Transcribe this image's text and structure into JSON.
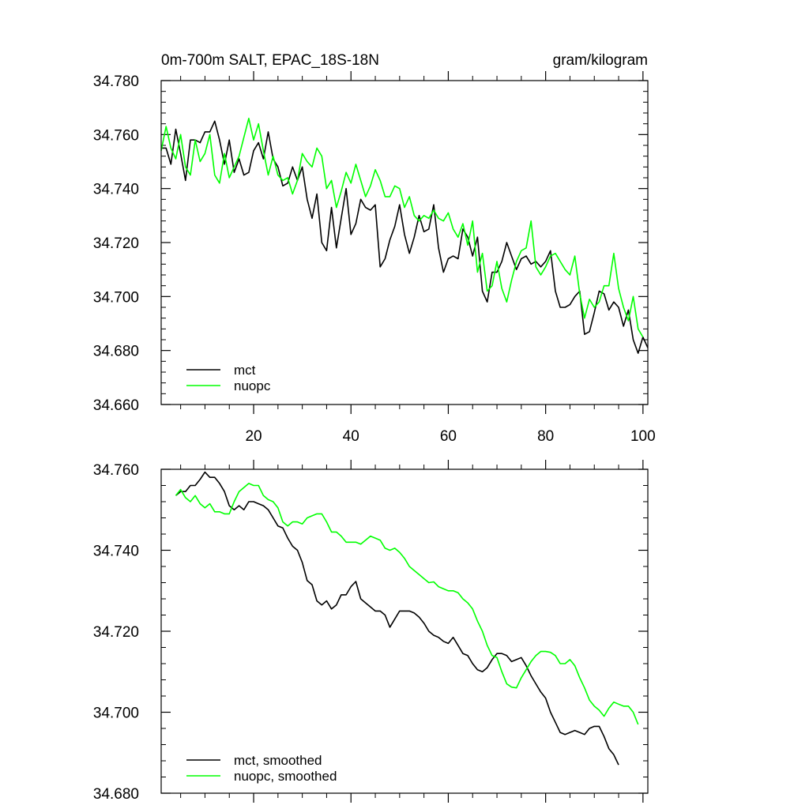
{
  "chart_data": [
    {
      "type": "line",
      "title_left": "0m-700m SALT, EPAC_18S-18N",
      "title_right": "gram/kilogram",
      "xlabel": "",
      "ylabel": "",
      "xlim": [
        1,
        101
      ],
      "ylim": [
        34.66,
        34.78
      ],
      "x_ticks": [
        20,
        40,
        60,
        80,
        100
      ],
      "x_tick_labels": [
        "20",
        "40",
        "60",
        "80",
        "100"
      ],
      "y_ticks": [
        34.66,
        34.68,
        34.7,
        34.72,
        34.74,
        34.76,
        34.78
      ],
      "y_tick_labels": [
        "34.660",
        "34.680",
        "34.700",
        "34.720",
        "34.740",
        "34.760",
        "34.780"
      ],
      "legend_position": "bottom-left",
      "series": [
        {
          "name": "mct",
          "color": "#000000",
          "x_start": 1,
          "values": [
            34.755,
            34.755,
            34.749,
            34.762,
            34.753,
            34.743,
            34.758,
            34.758,
            34.757,
            34.761,
            34.761,
            34.765,
            34.758,
            34.749,
            34.758,
            34.746,
            34.751,
            34.745,
            34.746,
            34.754,
            34.757,
            34.751,
            34.761,
            34.751,
            34.748,
            34.741,
            34.742,
            34.748,
            34.743,
            34.748,
            34.736,
            34.729,
            34.738,
            34.72,
            34.717,
            34.733,
            34.718,
            34.729,
            34.74,
            34.723,
            34.727,
            34.736,
            34.733,
            34.732,
            34.734,
            34.711,
            34.714,
            34.721,
            34.726,
            34.734,
            34.723,
            34.716,
            34.722,
            34.73,
            34.724,
            34.725,
            34.734,
            34.718,
            34.709,
            34.714,
            34.715,
            34.714,
            34.725,
            34.722,
            34.715,
            34.722,
            34.702,
            34.698,
            34.709,
            34.709,
            34.713,
            34.72,
            34.715,
            34.71,
            34.714,
            34.715,
            34.712,
            34.713,
            34.711,
            34.713,
            34.717,
            34.702,
            34.696,
            34.696,
            34.697,
            34.7,
            34.702,
            34.686,
            34.687,
            34.694,
            34.702,
            34.701,
            34.695,
            34.698,
            34.696,
            34.689,
            34.695,
            34.684,
            34.679,
            34.685,
            34.681
          ]
        },
        {
          "name": "nuopc",
          "color": "#00ff00",
          "x_start": 1,
          "values": [
            34.754,
            34.763,
            34.755,
            34.751,
            34.76,
            34.748,
            34.745,
            34.758,
            34.75,
            34.753,
            34.76,
            34.745,
            34.742,
            34.753,
            34.744,
            34.748,
            34.752,
            34.759,
            34.766,
            34.758,
            34.764,
            34.754,
            34.745,
            34.752,
            34.745,
            34.743,
            34.744,
            34.738,
            34.743,
            34.753,
            34.75,
            34.748,
            34.755,
            34.752,
            34.74,
            34.743,
            34.733,
            34.739,
            34.746,
            34.742,
            34.749,
            34.743,
            34.737,
            34.741,
            34.747,
            34.743,
            34.737,
            34.737,
            34.741,
            34.74,
            34.733,
            34.737,
            34.73,
            34.728,
            34.73,
            34.729,
            34.732,
            34.729,
            34.728,
            34.731,
            34.725,
            34.722,
            34.727,
            34.719,
            34.728,
            34.709,
            34.716,
            34.702,
            34.704,
            34.713,
            34.703,
            34.698,
            34.706,
            34.713,
            34.717,
            34.718,
            34.728,
            34.711,
            34.708,
            34.711,
            34.715,
            34.716,
            34.713,
            34.71,
            34.708,
            34.715,
            34.701,
            34.692,
            34.699,
            34.696,
            34.698,
            34.704,
            34.704,
            34.716,
            34.703,
            34.696,
            34.691,
            34.7,
            34.688,
            34.685
          ]
        }
      ]
    },
    {
      "type": "line",
      "xlabel": "",
      "ylabel": "",
      "xlim": [
        1,
        101
      ],
      "ylim": [
        34.68,
        34.76
      ],
      "x_ticks": [
        20,
        40,
        60,
        80,
        100
      ],
      "y_ticks": [
        34.68,
        34.7,
        34.72,
        34.74,
        34.76
      ],
      "y_tick_labels": [
        "34.680",
        "34.700",
        "34.720",
        "34.740",
        "34.760"
      ],
      "legend_position": "bottom-left",
      "series": [
        {
          "name": "mct, smoothed",
          "color": "#000000",
          "x_start": 4,
          "values": [
            34.7535,
            34.7545,
            34.7545,
            34.756,
            34.756,
            34.7575,
            34.7593,
            34.758,
            34.758,
            34.7565,
            34.7545,
            34.751,
            34.75,
            34.751,
            34.75,
            34.752,
            34.752,
            34.7515,
            34.751,
            34.75,
            34.748,
            34.746,
            34.7455,
            34.743,
            34.741,
            34.74,
            34.737,
            34.7325,
            34.7315,
            34.7275,
            34.7265,
            34.7275,
            34.7255,
            34.7265,
            34.729,
            34.729,
            34.731,
            34.7323,
            34.728,
            34.727,
            34.726,
            34.725,
            34.725,
            34.724,
            34.721,
            34.723,
            34.725,
            34.725,
            34.725,
            34.7245,
            34.7235,
            34.722,
            34.72,
            34.719,
            34.7185,
            34.7175,
            34.717,
            34.7185,
            34.7165,
            34.7145,
            34.714,
            34.712,
            34.7105,
            34.71,
            34.711,
            34.713,
            34.7145,
            34.7145,
            34.714,
            34.7125,
            34.713,
            34.7135,
            34.7115,
            34.709,
            34.707,
            34.705,
            34.7035,
            34.7,
            34.6975,
            34.695,
            34.6945,
            34.695,
            34.6955,
            34.695,
            34.6945,
            34.696,
            34.6965,
            34.6965,
            34.694,
            34.691,
            34.6895,
            34.687
          ]
        },
        {
          "name": "nuopc, smoothed",
          "color": "#00ff00",
          "x_start": 4,
          "values": [
            34.7535,
            34.755,
            34.753,
            34.752,
            34.7535,
            34.7515,
            34.7505,
            34.7515,
            34.7495,
            34.7495,
            34.749,
            34.749,
            34.752,
            34.7545,
            34.7555,
            34.7565,
            34.756,
            34.756,
            34.7535,
            34.7525,
            34.752,
            34.7505,
            34.747,
            34.746,
            34.747,
            34.747,
            34.7465,
            34.748,
            34.7485,
            34.749,
            34.749,
            34.747,
            34.7445,
            34.7445,
            34.7435,
            34.742,
            34.742,
            34.742,
            34.7415,
            34.7425,
            34.7435,
            34.743,
            34.7425,
            34.7405,
            34.74,
            34.7405,
            34.7395,
            34.738,
            34.736,
            34.735,
            34.734,
            34.733,
            34.732,
            34.7322,
            34.731,
            34.7305,
            34.73,
            34.73,
            34.7295,
            34.728,
            34.727,
            34.7255,
            34.7225,
            34.72,
            34.7165,
            34.714,
            34.7135,
            34.71,
            34.707,
            34.7062,
            34.706,
            34.7085,
            34.7105,
            34.7125,
            34.714,
            34.715,
            34.715,
            34.7148,
            34.714,
            34.712,
            34.712,
            34.713,
            34.7115,
            34.7085,
            34.706,
            34.703,
            34.7015,
            34.7005,
            34.699,
            34.701,
            34.7025,
            34.702,
            34.7015,
            34.7015,
            34.7,
            34.697
          ]
        }
      ]
    }
  ]
}
